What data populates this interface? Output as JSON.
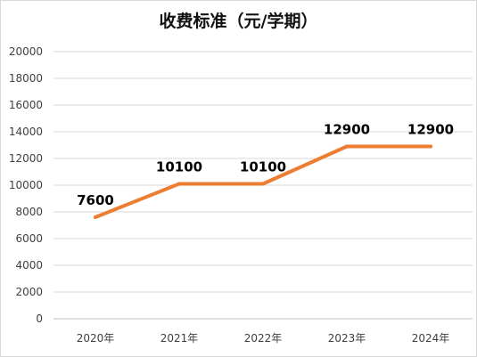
{
  "chart_data": {
    "type": "line",
    "title": "收费标准（元/学期）",
    "categories": [
      "2020年",
      "2021年",
      "2022年",
      "2023年",
      "2024年"
    ],
    "series": [
      {
        "values": [
          7600,
          10100,
          10100,
          12900,
          12900
        ],
        "color": "#ed7d31"
      }
    ],
    "ylim": [
      0,
      20000
    ],
    "yticks": [
      "0",
      "2000",
      "4000",
      "6000",
      "8000",
      "10000",
      "12000",
      "14000",
      "16000",
      "18000",
      "20000"
    ],
    "data_labels": [
      "7600",
      "10100",
      "10100",
      "12900",
      "12900"
    ],
    "grid": true,
    "legend": "none",
    "xlabel": "",
    "ylabel": ""
  }
}
